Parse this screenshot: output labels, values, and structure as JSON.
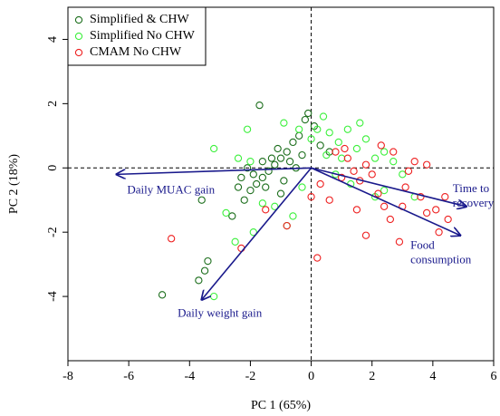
{
  "chart_data": {
    "type": "biplot",
    "xlabel": "PC 1 (65%)",
    "ylabel": "PC 2 (18%)",
    "xlim": [
      -8,
      6
    ],
    "ylim": [
      -6,
      5
    ],
    "xticks": [
      -8,
      -6,
      -4,
      -2,
      0,
      2,
      4,
      6
    ],
    "yticks": [
      -4,
      -2,
      0,
      2,
      4
    ],
    "reference_lines": {
      "x": 0,
      "y": 0
    },
    "legend": "top-left",
    "series": [
      {
        "name": "Simplified & CHW",
        "color": "#1c6e1c",
        "x": [
          -4.9,
          -3.7,
          -3.5,
          -3.4,
          -3.6,
          -2.6,
          -2.2,
          -2.0,
          -1.8,
          -1.6,
          -1.4,
          -1.2,
          -1.0,
          -0.8,
          -0.6,
          -0.4,
          -0.2,
          -1.7,
          -0.1,
          0.1,
          -1.9,
          -2.1,
          -1.5,
          -1.3,
          -0.9,
          -0.5,
          -2.3,
          -1.1,
          -0.7,
          0.3,
          0.6,
          -1.6,
          -2.4,
          -1.0,
          -0.3
        ],
        "values": [
          -3.95,
          -3.5,
          -3.2,
          -2.9,
          -1.0,
          -1.5,
          -1.0,
          -0.7,
          -0.5,
          -0.3,
          -0.1,
          0.1,
          0.3,
          0.5,
          0.8,
          1.0,
          1.5,
          1.95,
          1.7,
          1.3,
          -0.2,
          0.0,
          -0.6,
          0.3,
          -0.4,
          0.0,
          -0.3,
          0.6,
          0.2,
          0.7,
          0.5,
          0.2,
          -0.6,
          -0.8,
          0.4
        ]
      },
      {
        "name": "Simplified No CHW",
        "color": "#3cf03c",
        "x": [
          -3.2,
          -2.5,
          -2.8,
          -3.2,
          -2.4,
          -1.9,
          -1.6,
          -1.2,
          -0.8,
          -0.6,
          -0.3,
          0,
          0.2,
          0.4,
          0.6,
          0.9,
          1.2,
          1.5,
          1.8,
          2.1,
          2.4,
          2.7,
          3.0,
          2.4,
          2.1,
          1.3,
          -2.1,
          -0.9,
          0.5,
          1.0,
          -2.0,
          -0.4,
          1.6,
          3.4,
          0.8
        ],
        "values": [
          -4.0,
          -2.3,
          -1.4,
          0.6,
          0.3,
          -2.0,
          -1.1,
          -1.2,
          -1.8,
          -1.5,
          -0.6,
          0.9,
          1.2,
          1.6,
          1.1,
          0.8,
          1.2,
          0.6,
          0.9,
          0.3,
          0.5,
          0.2,
          -0.2,
          -0.7,
          -0.9,
          -0.5,
          1.2,
          1.4,
          0.4,
          0.3,
          0.2,
          1.2,
          1.4,
          -0.9,
          -0.2
        ]
      },
      {
        "name": "CMAM No CHW",
        "color": "#ee2020",
        "x": [
          -4.6,
          -2.3,
          -1.5,
          -0.8,
          0,
          0.2,
          0.3,
          0.8,
          1.0,
          1.2,
          1.4,
          1.6,
          1.8,
          2.0,
          2.2,
          2.4,
          2.6,
          2.9,
          3.0,
          3.2,
          3.4,
          3.6,
          3.8,
          4.1,
          4.4,
          4.5,
          3.8,
          2.7,
          1.5,
          1.8,
          4.2,
          0.6,
          2.3,
          3.1,
          1.1
        ],
        "values": [
          -2.2,
          -2.5,
          -1.3,
          -1.8,
          -0.9,
          -2.8,
          -0.5,
          0.5,
          -0.3,
          0.3,
          -0.1,
          -0.4,
          0.1,
          -0.2,
          -0.8,
          -1.2,
          -1.6,
          -2.3,
          -1.2,
          -0.1,
          0.2,
          -0.9,
          -1.4,
          -1.3,
          -0.9,
          -1.6,
          0.1,
          0.5,
          -1.3,
          -2.1,
          -2.0,
          -1.0,
          0.7,
          -0.6,
          0.6
        ]
      }
    ],
    "arrow_color": "#1a1a8c",
    "arrows": [
      {
        "label_lines": [
          "Daily MUAC gain"
        ],
        "x": -6.4,
        "y": -0.2
      },
      {
        "label_lines": [
          "Daily weight gain"
        ],
        "x": -3.6,
        "y": -4.1
      },
      {
        "label_lines": [
          "Time to",
          "recovery"
        ],
        "x": 5.1,
        "y": -1.2
      },
      {
        "label_lines": [
          "Food",
          "consumption"
        ],
        "x": 4.9,
        "y": -2.1
      }
    ]
  }
}
